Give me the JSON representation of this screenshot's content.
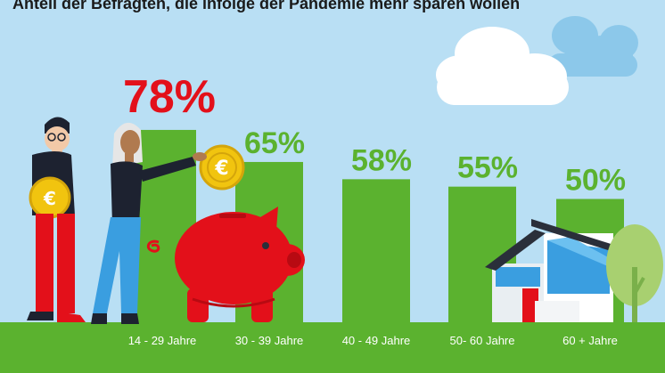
{
  "chart_data": {
    "type": "bar",
    "title": "Anteil der Befragten, die infolge der Pandemie mehr sparen wollen",
    "categories": [
      "14 - 29 Jahre",
      "30 - 39 Jahre",
      "40 - 49 Jahre",
      "50- 60 Jahre",
      "60 + Jahre"
    ],
    "values": [
      78,
      65,
      58,
      55,
      50
    ],
    "value_labels": [
      "78%",
      "65%",
      "58%",
      "55%",
      "50%"
    ],
    "highlight_index": 0,
    "ylim": [
      0,
      100
    ],
    "grid": false,
    "colors": {
      "bar": "#5bb22f",
      "label_default": "#5bb22f",
      "label_highlight": "#e3101a",
      "ground": "#5bb22f",
      "sky": "#b9dff4",
      "axis_text": "#ffffff"
    }
  },
  "illustration": {
    "icons": [
      "person-man-icon",
      "person-woman-icon",
      "euro-coin-icon",
      "piggy-bank-icon",
      "cloud-icon",
      "house-icon",
      "tree-icon"
    ]
  }
}
